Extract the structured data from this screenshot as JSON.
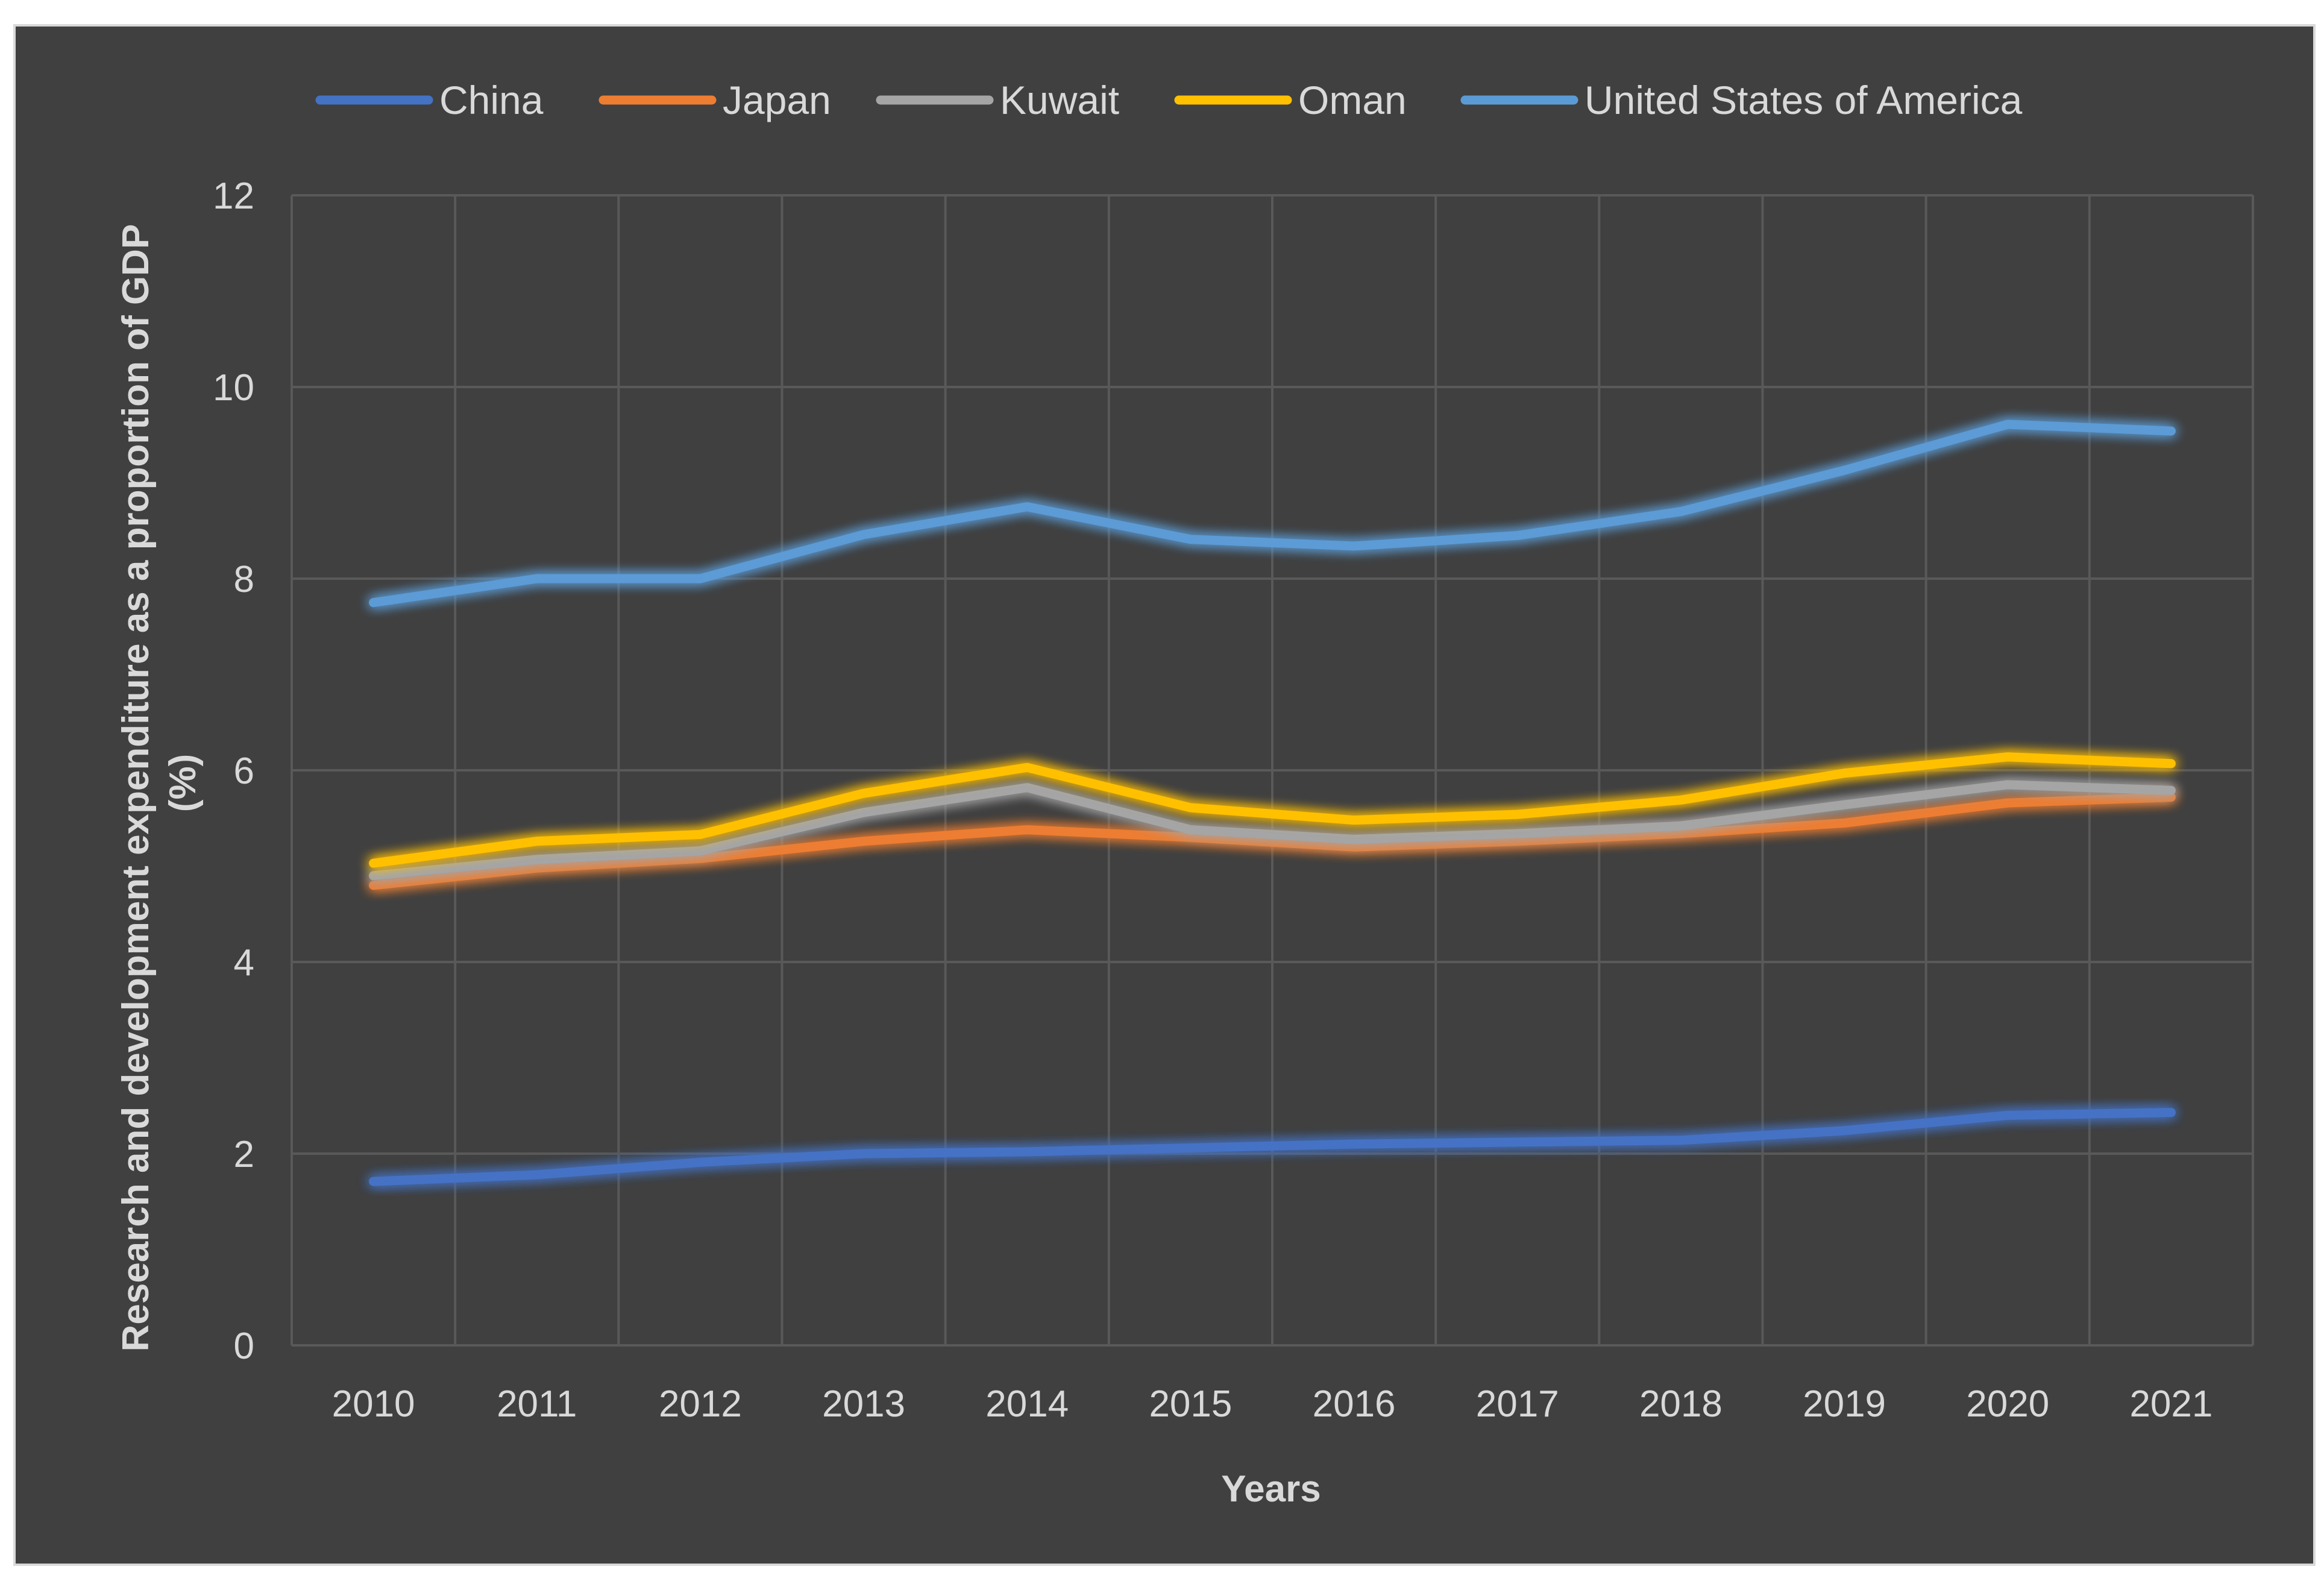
{
  "chart_data": {
    "type": "line",
    "title": "",
    "xlabel": "Years",
    "ylabel": "Research and development expenditure as a proportion of GDP (%)",
    "ylabel_lines": [
      "Research and development expenditure as a proportion of GDP",
      "(%)"
    ],
    "categories": [
      "2010",
      "2011",
      "2012",
      "2013",
      "2014",
      "2015",
      "2016",
      "2017",
      "2018",
      "2019",
      "2020",
      "2021"
    ],
    "ylim": [
      0,
      12
    ],
    "yticks": [
      "0",
      "2",
      "4",
      "6",
      "8",
      "10",
      "12"
    ],
    "grid": true,
    "legend_position": "top",
    "series": [
      {
        "name": "China",
        "color": "#4472C4",
        "values": [
          1.71,
          1.78,
          1.91,
          2.0,
          2.02,
          2.06,
          2.1,
          2.12,
          2.14,
          2.24,
          2.4,
          2.43
        ]
      },
      {
        "name": "Japan",
        "color": "#ED7D31",
        "values": [
          4.8,
          4.98,
          5.08,
          5.26,
          5.38,
          5.3,
          5.2,
          5.26,
          5.34,
          5.45,
          5.66,
          5.72
        ]
      },
      {
        "name": "Kuwait",
        "color": "#A5A5A5",
        "values": [
          4.9,
          5.07,
          5.16,
          5.56,
          5.82,
          5.38,
          5.28,
          5.34,
          5.42,
          5.64,
          5.85,
          5.79
        ]
      },
      {
        "name": "Oman",
        "color": "#FFC000",
        "values": [
          5.03,
          5.26,
          5.33,
          5.76,
          6.03,
          5.61,
          5.48,
          5.54,
          5.69,
          5.97,
          6.14,
          6.07
        ]
      },
      {
        "name": "United States of America",
        "color": "#5B9BD5",
        "values": [
          7.75,
          8.0,
          8.0,
          8.46,
          8.75,
          8.41,
          8.34,
          8.45,
          8.7,
          9.13,
          9.61,
          9.54
        ]
      }
    ]
  }
}
